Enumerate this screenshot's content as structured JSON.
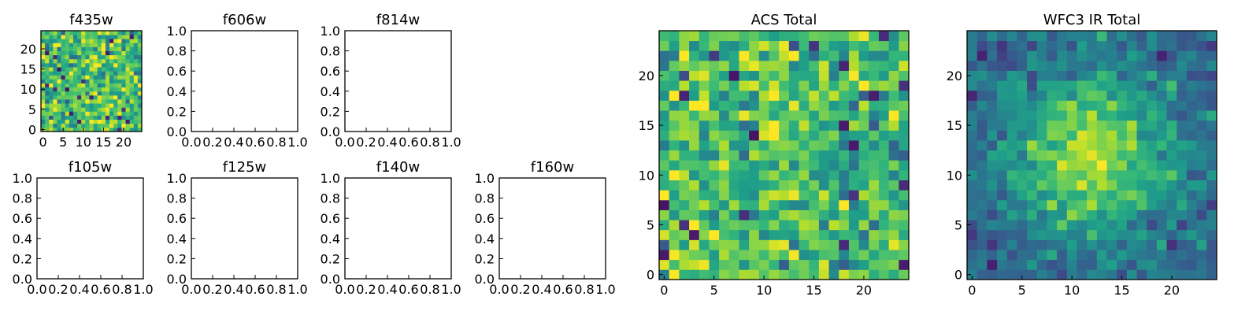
{
  "chart_data": [
    {
      "type": "heatmap",
      "title": "f435w",
      "has_image": true,
      "pattern": "noise",
      "grid_size": 25,
      "xticks": [
        0,
        5,
        10,
        15,
        20
      ],
      "yticks": [
        0,
        5,
        10,
        15,
        20
      ],
      "xlim": [
        -0.5,
        24.5
      ],
      "ylim": [
        -0.5,
        24.5
      ],
      "colormap": "viridis",
      "seed": 7
    },
    {
      "type": "heatmap",
      "title": "f606w",
      "has_image": false,
      "xticks": [
        "0.0",
        "0.2",
        "0.4",
        "0.6",
        "0.8",
        "1.0"
      ],
      "yticks": [
        "0.0",
        "0.2",
        "0.4",
        "0.6",
        "0.8",
        "1.0"
      ],
      "xlim": [
        0,
        1
      ],
      "ylim": [
        0,
        1
      ]
    },
    {
      "type": "heatmap",
      "title": "f814w",
      "has_image": false,
      "xticks": [
        "0.0",
        "0.2",
        "0.4",
        "0.6",
        "0.8",
        "1.0"
      ],
      "yticks": [
        "0.0",
        "0.2",
        "0.4",
        "0.6",
        "0.8",
        "1.0"
      ],
      "xlim": [
        0,
        1
      ],
      "ylim": [
        0,
        1
      ]
    },
    {
      "type": "heatmap",
      "title": "f105w",
      "has_image": false,
      "xticks": [
        "0.0",
        "0.2",
        "0.4",
        "0.6",
        "0.8",
        "1.0"
      ],
      "yticks": [
        "0.0",
        "0.2",
        "0.4",
        "0.6",
        "0.8",
        "1.0"
      ],
      "xlim": [
        0,
        1
      ],
      "ylim": [
        0,
        1
      ]
    },
    {
      "type": "heatmap",
      "title": "f125w",
      "has_image": false,
      "xticks": [
        "0.0",
        "0.2",
        "0.4",
        "0.6",
        "0.8",
        "1.0"
      ],
      "yticks": [
        "0.0",
        "0.2",
        "0.4",
        "0.6",
        "0.8",
        "1.0"
      ],
      "xlim": [
        0,
        1
      ],
      "ylim": [
        0,
        1
      ]
    },
    {
      "type": "heatmap",
      "title": "f140w",
      "has_image": false,
      "xticks": [
        "0.0",
        "0.2",
        "0.4",
        "0.6",
        "0.8",
        "1.0"
      ],
      "yticks": [
        "0.0",
        "0.2",
        "0.4",
        "0.6",
        "0.8",
        "1.0"
      ],
      "xlim": [
        0,
        1
      ],
      "ylim": [
        0,
        1
      ]
    },
    {
      "type": "heatmap",
      "title": "f160w",
      "has_image": false,
      "xticks": [
        "0.0",
        "0.2",
        "0.4",
        "0.6",
        "0.8",
        "1.0"
      ],
      "yticks": [
        "0.0",
        "0.2",
        "0.4",
        "0.6",
        "0.8",
        "1.0"
      ],
      "xlim": [
        0,
        1
      ],
      "ylim": [
        0,
        1
      ]
    },
    {
      "type": "heatmap",
      "title": "ACS Total",
      "has_image": true,
      "pattern": "noise",
      "grid_size": 25,
      "xticks": [
        0,
        5,
        10,
        15,
        20
      ],
      "yticks": [
        0,
        5,
        10,
        15,
        20
      ],
      "xlim": [
        -0.5,
        24.5
      ],
      "ylim": [
        -0.5,
        24.5
      ],
      "colormap": "viridis",
      "seed": 13
    },
    {
      "type": "heatmap",
      "title": "WFC3 IR Total",
      "has_image": true,
      "pattern": "blob",
      "grid_size": 25,
      "xticks": [
        0,
        5,
        10,
        15,
        20
      ],
      "yticks": [
        0,
        5,
        10,
        15,
        20
      ],
      "xlim": [
        -0.5,
        24.5
      ],
      "ylim": [
        -0.5,
        24.5
      ],
      "colormap": "viridis",
      "source_center": [
        12,
        12
      ],
      "seed": 29
    }
  ]
}
